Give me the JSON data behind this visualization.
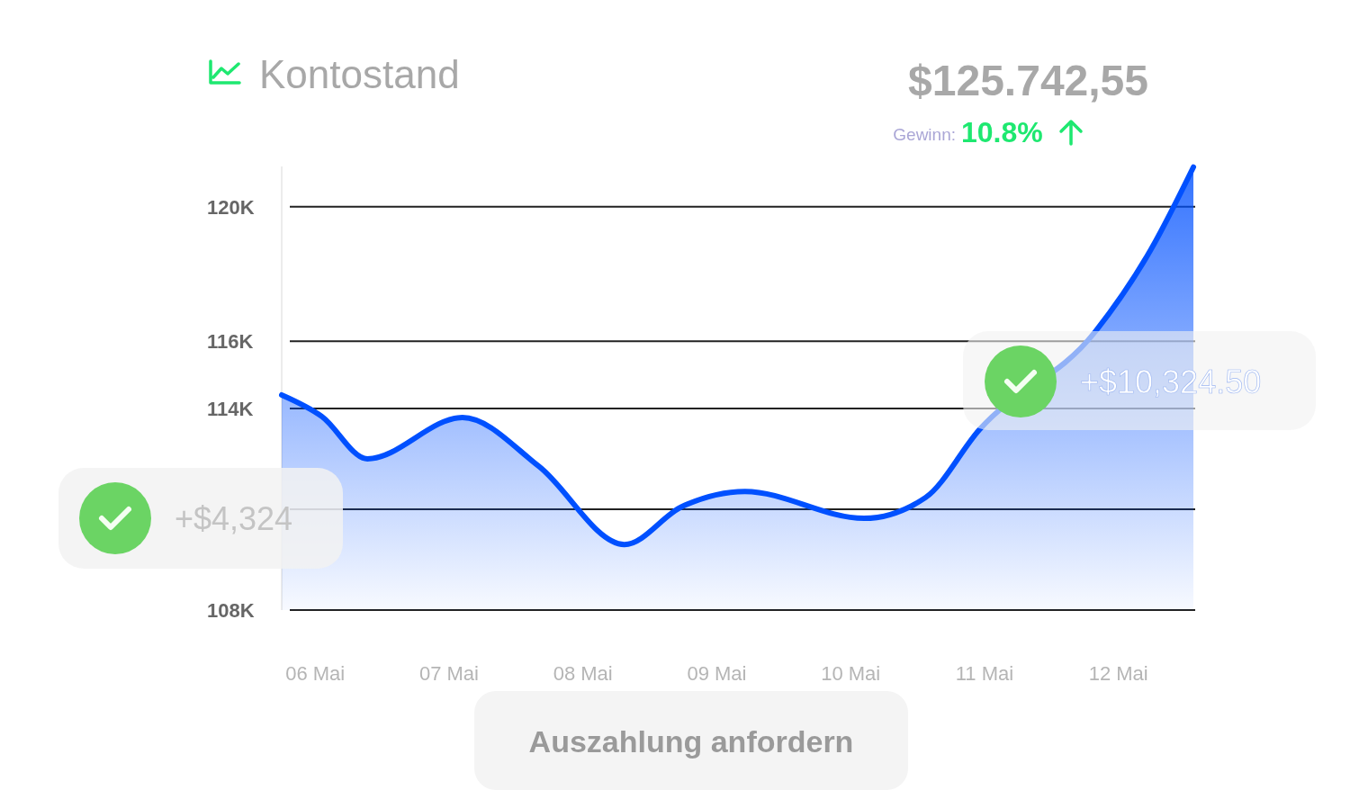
{
  "chart_data": {
    "type": "area",
    "title": "Kontostand",
    "xlim": [
      5.75,
      12.56
    ],
    "xticks": [
      {
        "value": 6,
        "label": "06 Mai"
      },
      {
        "value": 7,
        "label": "07 Mai"
      },
      {
        "value": 8,
        "label": "08 Mai"
      },
      {
        "value": 9,
        "label": "09 Mai"
      },
      {
        "value": 10,
        "label": "10 Mai"
      },
      {
        "value": 11,
        "label": "11 Mai"
      },
      {
        "value": 12,
        "label": "12 Mai"
      }
    ],
    "ylim": [
      108000,
      121200
    ],
    "yticks": [
      {
        "value": 108000,
        "label": "108K"
      },
      {
        "value": 111000,
        "label": null
      },
      {
        "value": 114000,
        "label": "114K"
      },
      {
        "value": 116000,
        "label": "116K"
      },
      {
        "value": 120000,
        "label": "120K"
      }
    ],
    "grid": "y",
    "series": [
      {
        "color": "#0050ff",
        "x": [
          5.75,
          6.05,
          6.39,
          7.1,
          7.67,
          8.31,
          8.74,
          9.21,
          10.1,
          10.56,
          10.96,
          11.83,
          12.24,
          12.56
        ],
        "values": [
          114400,
          113760,
          112500,
          113730,
          112280,
          109950,
          111080,
          111530,
          110730,
          111350,
          113360,
          116300,
          118710,
          121180
        ]
      }
    ],
    "annotations": [
      "$125.742,55",
      "Gewinn:",
      "10.8%",
      "+$4,324",
      "+$10,324.50",
      "Auszahlung anfordern"
    ]
  }
}
